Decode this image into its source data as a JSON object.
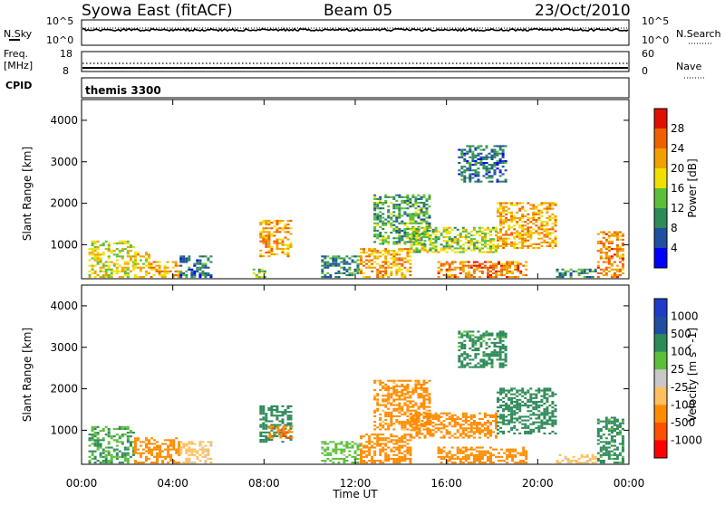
{
  "header": {
    "station": "Syowa East (fitACF)",
    "beam": "Beam 05",
    "date": "23/Oct/2010"
  },
  "top_panels": {
    "noise": {
      "left_label": "N.Sky",
      "right_label": "N.Search",
      "left_ticks": [
        "10^5",
        "10^0"
      ],
      "right_ticks": [
        "10^5",
        "10^0"
      ]
    },
    "freq": {
      "left_label_line1": "Freq.",
      "left_label_line2": "[MHz]",
      "right_label": "Nave",
      "left_ticks": [
        "18",
        "8"
      ],
      "right_ticks": [
        "60",
        "0"
      ]
    },
    "cpid": {
      "label": "CPID",
      "program": "themis 3300"
    }
  },
  "colors": {
    "power_scale": [
      "#0000ff",
      "#1e4fa0",
      "#2f8a5a",
      "#5cbf3a",
      "#f0e000",
      "#f0a000",
      "#f06000",
      "#e01000"
    ],
    "velocity_scale": [
      "#ff0000",
      "#ff5000",
      "#ff8c00",
      "#ffc060",
      "#c8c8c8",
      "#5cbf3a",
      "#2f8a5a",
      "#1e4fa0",
      "#1e3cc8"
    ]
  },
  "chart_data": [
    {
      "type": "heatmap",
      "title": "",
      "xlabel": "",
      "ylabel": "Slant Range [km]",
      "xticks": [
        "00:00",
        "04:00",
        "08:00",
        "12:00",
        "16:00",
        "20:00",
        "00:00"
      ],
      "yticks": [
        "1000",
        "2000",
        "3000",
        "4000"
      ],
      "ylim": [
        180,
        4500
      ],
      "colorbar": {
        "label": "Power [dB]",
        "ticks": [
          "4",
          "8",
          "12",
          "16",
          "20",
          "24",
          "28"
        ],
        "range": [
          0,
          30
        ]
      },
      "regions": [
        {
          "t": [
            0.3,
            2.3
          ],
          "r": [
            200,
            1100
          ],
          "v": 18
        },
        {
          "t": [
            2.3,
            3.0
          ],
          "r": [
            200,
            800
          ],
          "v": 20
        },
        {
          "t": [
            3.0,
            4.3
          ],
          "r": [
            200,
            600
          ],
          "v": 22
        },
        {
          "t": [
            4.3,
            5.7
          ],
          "r": [
            200,
            700
          ],
          "v": 8
        },
        {
          "t": [
            7.5,
            8.0
          ],
          "r": [
            200,
            400
          ],
          "v": 14
        },
        {
          "t": [
            7.8,
            9.2
          ],
          "r": [
            700,
            1600
          ],
          "v": 22
        },
        {
          "t": [
            10.5,
            12.2
          ],
          "r": [
            200,
            700
          ],
          "v": 10
        },
        {
          "t": [
            12.2,
            14.4
          ],
          "r": [
            200,
            900
          ],
          "v": 22
        },
        {
          "t": [
            12.8,
            15.2
          ],
          "r": [
            1000,
            2200
          ],
          "v": 12
        },
        {
          "t": [
            14.4,
            18.2
          ],
          "r": [
            800,
            1400
          ],
          "v": 16
        },
        {
          "t": [
            15.6,
            19.5
          ],
          "r": [
            200,
            600
          ],
          "v": 24
        },
        {
          "t": [
            16.5,
            18.6
          ],
          "r": [
            2500,
            3400
          ],
          "v": 8
        },
        {
          "t": [
            18.2,
            20.8
          ],
          "r": [
            900,
            2000
          ],
          "v": 22
        },
        {
          "t": [
            20.8,
            22.6
          ],
          "r": [
            200,
            400
          ],
          "v": 10
        },
        {
          "t": [
            22.6,
            23.8
          ],
          "r": [
            200,
            1300
          ],
          "v": 24
        }
      ]
    },
    {
      "type": "heatmap",
      "title": "",
      "xlabel": "Time UT",
      "ylabel": "Slant Range [km]",
      "xticks": [
        "00:00",
        "04:00",
        "08:00",
        "12:00",
        "16:00",
        "20:00",
        "00:00"
      ],
      "yticks": [
        "1000",
        "2000",
        "3000",
        "4000"
      ],
      "ylim": [
        180,
        4500
      ],
      "colorbar": {
        "label": "Velocity [m s^-1]",
        "ticks": [
          "1000",
          "500",
          "100",
          "25",
          "-25",
          "-100",
          "-500",
          "-1000"
        ]
      },
      "regions": [
        {
          "t": [
            0.3,
            2.3
          ],
          "r": [
            200,
            1100
          ],
          "v": 100
        },
        {
          "t": [
            2.3,
            4.3
          ],
          "r": [
            200,
            800
          ],
          "v": -300
        },
        {
          "t": [
            4.3,
            5.7
          ],
          "r": [
            200,
            700
          ],
          "v": -60
        },
        {
          "t": [
            7.8,
            9.2
          ],
          "r": [
            700,
            1600
          ],
          "v": 300
        },
        {
          "t": [
            8.2,
            9.2
          ],
          "r": [
            800,
            1100
          ],
          "v": -400
        },
        {
          "t": [
            10.5,
            12.2
          ],
          "r": [
            200,
            700
          ],
          "v": 60
        },
        {
          "t": [
            12.2,
            14.4
          ],
          "r": [
            200,
            900
          ],
          "v": -300
        },
        {
          "t": [
            12.8,
            15.2
          ],
          "r": [
            1000,
            2200
          ],
          "v": -150
        },
        {
          "t": [
            14.4,
            18.2
          ],
          "r": [
            800,
            1400
          ],
          "v": -200
        },
        {
          "t": [
            15.6,
            19.5
          ],
          "r": [
            200,
            600
          ],
          "v": -300
        },
        {
          "t": [
            16.5,
            18.6
          ],
          "r": [
            2500,
            3400
          ],
          "v": 150
        },
        {
          "t": [
            18.2,
            20.8
          ],
          "r": [
            900,
            2000
          ],
          "v": 200
        },
        {
          "t": [
            20.8,
            22.6
          ],
          "r": [
            200,
            400
          ],
          "v": -50
        },
        {
          "t": [
            22.6,
            23.8
          ],
          "r": [
            200,
            1300
          ],
          "v": 150
        }
      ]
    }
  ]
}
